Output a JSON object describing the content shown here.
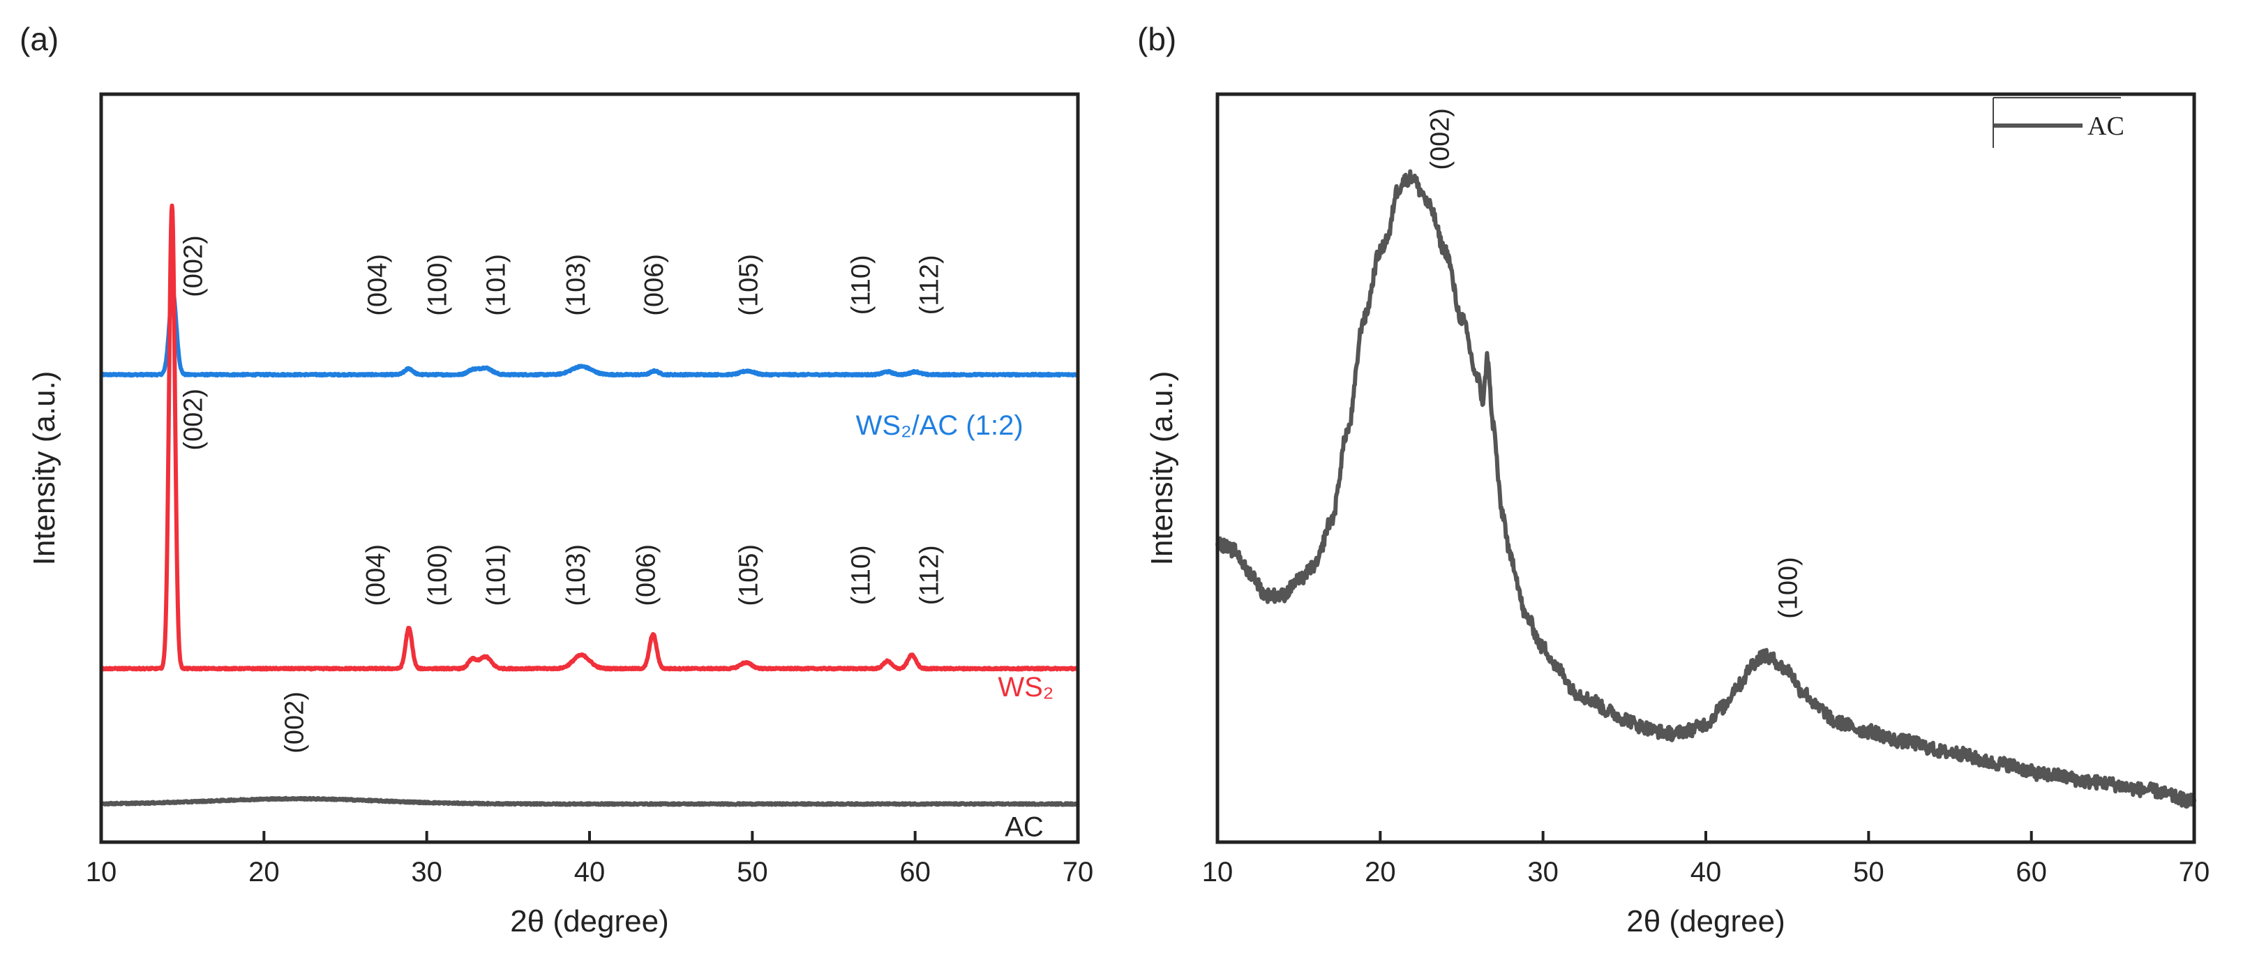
{
  "chart_data": [
    {
      "panel": "(a)",
      "type": "line",
      "title": "",
      "xlabel": "2θ (degree)",
      "ylabel": "Intensity (a.u.)",
      "xlim": [
        10,
        70
      ],
      "xticks": [
        "10",
        "20",
        "30",
        "40",
        "50",
        "60",
        "70"
      ],
      "grid": false,
      "series": [
        {
          "name": "WS₂/AC (1:2)",
          "color": "#1f7fe0",
          "baseline": 0.625,
          "peaks": [
            {
              "x": 14.4,
              "h": 0.11,
              "w": 0.22,
              "label": "(002)"
            },
            {
              "x": 28.9,
              "h": 0.008,
              "w": 0.25,
              "label": "(004)"
            },
            {
              "x": 32.8,
              "h": 0.006,
              "w": 0.3,
              "label": "(100)"
            },
            {
              "x": 33.6,
              "h": 0.009,
              "w": 0.4,
              "label": "(101)"
            },
            {
              "x": 39.5,
              "h": 0.011,
              "w": 0.6,
              "label": "(103)"
            },
            {
              "x": 44.0,
              "h": 0.005,
              "w": 0.25,
              "label": "(006)"
            },
            {
              "x": 49.7,
              "h": 0.005,
              "w": 0.4,
              "label": "(105)"
            },
            {
              "x": 58.3,
              "h": 0.004,
              "w": 0.3,
              "label": "(110)"
            },
            {
              "x": 60.0,
              "h": 0.004,
              "w": 0.3,
              "label": "(112)"
            }
          ]
        },
        {
          "name": "WS₂",
          "color": "#f0303a",
          "baseline": 0.232,
          "peaks": [
            {
              "x": 14.35,
              "h": 0.62,
              "w": 0.18,
              "label": "(002)"
            },
            {
              "x": 28.9,
              "h": 0.054,
              "w": 0.2,
              "label": "(004)"
            },
            {
              "x": 32.8,
              "h": 0.012,
              "w": 0.25,
              "label": "(100)"
            },
            {
              "x": 33.6,
              "h": 0.016,
              "w": 0.35,
              "label": "(101)"
            },
            {
              "x": 39.5,
              "h": 0.018,
              "w": 0.5,
              "label": "(103)"
            },
            {
              "x": 43.9,
              "h": 0.046,
              "w": 0.22,
              "label": "(006)"
            },
            {
              "x": 49.6,
              "h": 0.008,
              "w": 0.35,
              "label": "(105)"
            },
            {
              "x": 58.3,
              "h": 0.01,
              "w": 0.25,
              "label": "(110)"
            },
            {
              "x": 59.8,
              "h": 0.018,
              "w": 0.25,
              "label": "(112)"
            }
          ]
        },
        {
          "name": "AC",
          "color": "#555555",
          "baseline": 0.051,
          "peaks": [
            {
              "x": 22.0,
              "h": 0.007,
              "w": 5.0,
              "label": "(002)"
            }
          ]
        }
      ],
      "peak_annotations": [
        {
          "text": "(002)",
          "x": 16.2,
          "y": 0.77
        },
        {
          "text": "(004)",
          "x": 27.5,
          "y": 0.745
        },
        {
          "text": "(100)",
          "x": 31.2,
          "y": 0.745
        },
        {
          "text": "(101)",
          "x": 34.8,
          "y": 0.745
        },
        {
          "text": "(103)",
          "x": 39.7,
          "y": 0.745
        },
        {
          "text": "(006)",
          "x": 44.5,
          "y": 0.745
        },
        {
          "text": "(105)",
          "x": 50.3,
          "y": 0.745
        },
        {
          "text": "(110)",
          "x": 57.2,
          "y": 0.745
        },
        {
          "text": "(112)",
          "x": 61.4,
          "y": 0.745
        },
        {
          "text": "(002)",
          "x": 16.2,
          "y": 0.565
        },
        {
          "text": "(004)",
          "x": 27.4,
          "y": 0.357
        },
        {
          "text": "(100)",
          "x": 31.2,
          "y": 0.357
        },
        {
          "text": "(101)",
          "x": 34.8,
          "y": 0.357
        },
        {
          "text": "(103)",
          "x": 39.7,
          "y": 0.357
        },
        {
          "text": "(006)",
          "x": 44.0,
          "y": 0.357
        },
        {
          "text": "(105)",
          "x": 50.3,
          "y": 0.357
        },
        {
          "text": "(110)",
          "x": 57.2,
          "y": 0.357
        },
        {
          "text": "(112)",
          "x": 61.4,
          "y": 0.357
        },
        {
          "text": "(002)",
          "x": 22.4,
          "y": 0.16
        }
      ],
      "series_labels": [
        {
          "text": "WS₂/AC (1:2)",
          "x": 61.5,
          "y": 0.545,
          "color": "#1f7fe0"
        },
        {
          "text": "WS₂",
          "x": 66.8,
          "y": 0.195,
          "color": "#f0303a"
        },
        {
          "text": "AC",
          "x": 66.7,
          "y": 0.008,
          "color": "#222222"
        }
      ]
    },
    {
      "panel": "(b)",
      "type": "line",
      "title": "",
      "xlabel": "2θ (degree)",
      "ylabel": "Intensity (a.u.)",
      "xlim": [
        10,
        70
      ],
      "xticks": [
        "10",
        "20",
        "30",
        "40",
        "50",
        "60",
        "70"
      ],
      "grid": false,
      "legend": {
        "entries": [
          "AC"
        ],
        "position": "top-right"
      },
      "series": [
        {
          "name": "AC",
          "color": "#555555",
          "points": [
            [
              10,
              0.4
            ],
            [
              11,
              0.39
            ],
            [
              12,
              0.36
            ],
            [
              13,
              0.33
            ],
            [
              14,
              0.33
            ],
            [
              15,
              0.35
            ],
            [
              16,
              0.37
            ],
            [
              17,
              0.43
            ],
            [
              18,
              0.55
            ],
            [
              19,
              0.7
            ],
            [
              20,
              0.79
            ],
            [
              20.5,
              0.81
            ],
            [
              21,
              0.87
            ],
            [
              21.5,
              0.885
            ],
            [
              22,
              0.89
            ],
            [
              22.5,
              0.87
            ],
            [
              23,
              0.85
            ],
            [
              24,
              0.79
            ],
            [
              25,
              0.7
            ],
            [
              26,
              0.62
            ],
            [
              26.3,
              0.59
            ],
            [
              26.6,
              0.65
            ],
            [
              26.9,
              0.56
            ],
            [
              27.5,
              0.44
            ],
            [
              28,
              0.38
            ],
            [
              29,
              0.3
            ],
            [
              30,
              0.26
            ],
            [
              31,
              0.23
            ],
            [
              32,
              0.2
            ],
            [
              33,
              0.19
            ],
            [
              34,
              0.175
            ],
            [
              35,
              0.165
            ],
            [
              36,
              0.155
            ],
            [
              37,
              0.148
            ],
            [
              38,
              0.145
            ],
            [
              39,
              0.15
            ],
            [
              40,
              0.158
            ],
            [
              41,
              0.18
            ],
            [
              42,
              0.21
            ],
            [
              43,
              0.24
            ],
            [
              43.5,
              0.25
            ],
            [
              44,
              0.245
            ],
            [
              45,
              0.23
            ],
            [
              46,
              0.2
            ],
            [
              47,
              0.178
            ],
            [
              48,
              0.16
            ],
            [
              50,
              0.148
            ],
            [
              52,
              0.135
            ],
            [
              55,
              0.12
            ],
            [
              58,
              0.105
            ],
            [
              61,
              0.09
            ],
            [
              64,
              0.08
            ],
            [
              67,
              0.07
            ],
            [
              70,
              0.055
            ]
          ]
        }
      ],
      "peak_annotations": [
        {
          "text": "(002)",
          "x": 24.2,
          "y": 0.94
        },
        {
          "text": "(100)",
          "x": 45.6,
          "y": 0.34
        }
      ]
    }
  ]
}
